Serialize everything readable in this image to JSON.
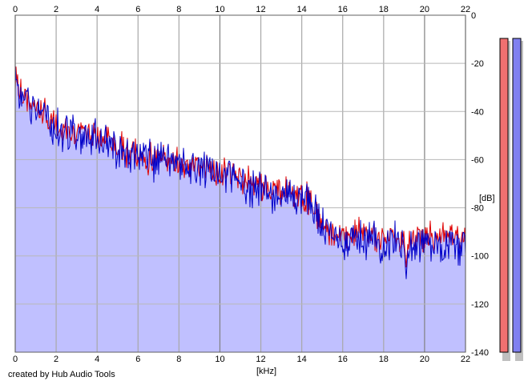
{
  "chart_data": {
    "type": "line",
    "title": "",
    "xlabel": "[kHz]",
    "ylabel": "[dB]",
    "xlim": [
      0,
      22
    ],
    "ylim": [
      -140,
      0
    ],
    "x_ticks": [
      0,
      2,
      4,
      6,
      8,
      10,
      12,
      14,
      16,
      18,
      20,
      22
    ],
    "y_ticks": [
      0,
      -20,
      -40,
      -60,
      -80,
      -100,
      -120,
      -140
    ],
    "y_tick_labels": [
      "0",
      "-20",
      "-40",
      "-60",
      "-80",
      "-100",
      "-120",
      "-140"
    ],
    "grid": true,
    "fill_color": "#c0c0ff",
    "series": [
      {
        "color": "#e00000",
        "x": [
          0,
          0.2,
          0.5,
          1.0,
          1.3,
          1.6,
          2.0,
          2.5,
          3.0,
          3.5,
          4.0,
          4.5,
          5.0,
          6.0,
          7.0,
          8.0,
          9.0,
          10.0,
          11.0,
          12.0,
          13.0,
          14.0,
          14.5,
          15.0,
          15.5,
          16.0,
          17.0,
          18.0,
          19.0,
          19.1,
          19.2,
          20.0,
          21.0,
          22.0
        ],
        "y": [
          -27,
          -30,
          -35,
          -37,
          -40,
          -43,
          -47,
          -48,
          -49,
          -50,
          -51,
          -52,
          -54,
          -59,
          -60,
          -61,
          -63,
          -65,
          -67,
          -70,
          -73,
          -75,
          -78,
          -86,
          -90,
          -91,
          -91,
          -92,
          -93,
          -105,
          -93,
          -92,
          -92,
          -93
        ]
      },
      {
        "color": "#0000c8",
        "x": [
          0,
          0.2,
          0.5,
          1.0,
          1.3,
          1.6,
          2.0,
          2.5,
          3.0,
          3.5,
          4.0,
          4.5,
          5.0,
          6.0,
          7.0,
          8.0,
          9.0,
          10.0,
          11.0,
          12.0,
          13.0,
          14.0,
          14.5,
          15.0,
          15.5,
          16.0,
          17.0,
          18.0,
          19.0,
          19.1,
          19.2,
          20.0,
          21.0,
          22.0
        ],
        "y": [
          -28,
          -31,
          -36,
          -38,
          -41,
          -44,
          -48,
          -49,
          -50,
          -51,
          -52,
          -53,
          -55,
          -60,
          -61,
          -62,
          -64,
          -66,
          -69,
          -73,
          -75,
          -75,
          -79,
          -88,
          -92,
          -93,
          -93,
          -94,
          -95,
          -110,
          -95,
          -94,
          -95,
          -96
        ]
      }
    ]
  },
  "meters": [
    {
      "level": -140,
      "color": "#f07070"
    },
    {
      "level": -140,
      "color": "#8080f0"
    }
  ],
  "credit": "created by Hub Audio Tools"
}
